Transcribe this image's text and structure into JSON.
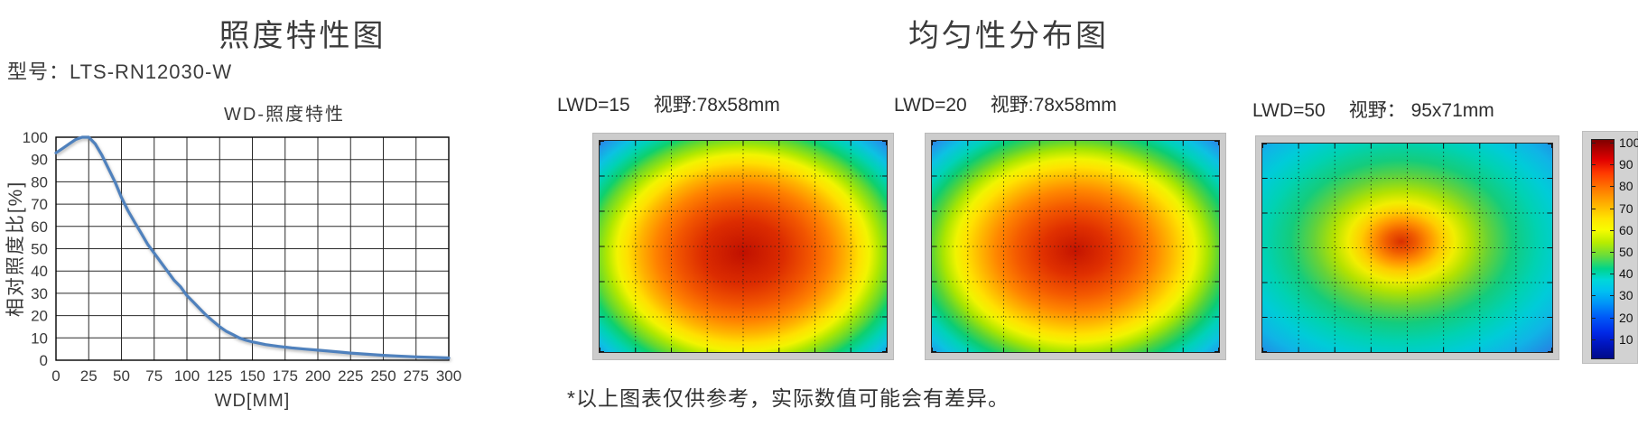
{
  "left_panel": {
    "title": "照度特性图",
    "model_label": "型号：LTS-RN12030-W"
  },
  "right_panel": {
    "title": "均匀性分布图",
    "heatmaps": [
      {
        "lwd_label": "LWD=15",
        "fov_label": "视野:78x58mm"
      },
      {
        "lwd_label": "LWD=20",
        "fov_label": "视野:78x58mm"
      },
      {
        "lwd_label": "LWD=50",
        "fov_label": "视野： 95x71mm"
      }
    ],
    "colorbar": {
      "ticks": [
        "100",
        "90",
        "80",
        "70",
        "60",
        "50",
        "40",
        "30",
        "20",
        "10"
      ],
      "gradient": [
        [
          "#7f0000",
          0
        ],
        [
          "#a00000",
          3
        ],
        [
          "#e00000",
          9
        ],
        [
          "#ff3800",
          15
        ],
        [
          "#ff7600",
          22
        ],
        [
          "#ffae00",
          29
        ],
        [
          "#ffe400",
          36
        ],
        [
          "#f8fc00",
          41
        ],
        [
          "#b8ec00",
          47
        ],
        [
          "#68dc3c",
          53
        ],
        [
          "#00d48c",
          59
        ],
        [
          "#00d8d8",
          64
        ],
        [
          "#00c2f0",
          69
        ],
        [
          "#0092f8",
          75
        ],
        [
          "#005af8",
          81
        ],
        [
          "#002ae8",
          88
        ],
        [
          "#0016c2",
          93
        ],
        [
          "#000a88",
          100
        ]
      ]
    }
  },
  "footer_note": "*以上图表仅供参考，实际数值可能会有差异。",
  "colors": {
    "curve": "#4f81bd",
    "grid": "#2a2a2a",
    "text": "#3a3a3a"
  },
  "chart_data": [
    {
      "type": "line",
      "title": "WD-照度特性",
      "xlabel": "WD[MM]",
      "ylabel": "相对照度比[%]",
      "xlim": [
        0,
        300
      ],
      "ylim": [
        0,
        100
      ],
      "xticks": [
        0,
        25,
        50,
        75,
        100,
        125,
        150,
        175,
        200,
        225,
        250,
        275,
        300
      ],
      "yticks": [
        0,
        10,
        20,
        30,
        40,
        50,
        60,
        70,
        80,
        90,
        100
      ],
      "grid": true,
      "legend": false,
      "series": [
        {
          "name": "相对照度比",
          "color": "#4f81bd",
          "x": [
            0,
            5,
            10,
            15,
            20,
            25,
            30,
            35,
            40,
            45,
            50,
            55,
            60,
            65,
            70,
            75,
            80,
            85,
            90,
            95,
            100,
            105,
            110,
            115,
            120,
            125,
            130,
            135,
            140,
            145,
            150,
            160,
            170,
            180,
            190,
            200,
            210,
            225,
            240,
            250,
            260,
            275,
            290,
            300
          ],
          "y": [
            93,
            95,
            97,
            99,
            100,
            100,
            97,
            92,
            86,
            80,
            73,
            67,
            62,
            57,
            52,
            48,
            44,
            40,
            36,
            33,
            29,
            26,
            23,
            20,
            17.5,
            15,
            13,
            11.5,
            10,
            9,
            8.2,
            7,
            6.2,
            5.5,
            5,
            4.5,
            4,
            3.2,
            2.6,
            2.2,
            1.9,
            1.5,
            1.2,
            1
          ]
        }
      ]
    },
    {
      "type": "heatmap",
      "title": "LWD=15 视野:78x58mm",
      "colormap": "jet",
      "zlim": [
        0,
        100
      ],
      "grid_cols": 8,
      "grid_rows": 6,
      "center_pct": [
        50,
        53
      ],
      "stops": [
        [
          "#c01000",
          0
        ],
        [
          "#dc2c00",
          20
        ],
        [
          "#f25600",
          33
        ],
        [
          "#ff8200",
          43
        ],
        [
          "#ffb400",
          51
        ],
        [
          "#ffe000",
          57
        ],
        [
          "#f2f400",
          62
        ],
        [
          "#b0e800",
          67
        ],
        [
          "#62d830",
          73
        ],
        [
          "#0ed06e",
          78
        ],
        [
          "#00d2b4",
          84
        ],
        [
          "#0cc2e2",
          90
        ],
        [
          "#1f9ce8",
          96
        ],
        [
          "#2b7fe0",
          100
        ]
      ]
    },
    {
      "type": "heatmap",
      "title": "LWD=20 视野:78x58mm",
      "colormap": "jet",
      "zlim": [
        0,
        100
      ],
      "grid_cols": 8,
      "grid_rows": 6,
      "center_pct": [
        50,
        52
      ],
      "stops": [
        [
          "#c41400",
          0
        ],
        [
          "#e03000",
          16
        ],
        [
          "#f45a00",
          29
        ],
        [
          "#ff8600",
          39
        ],
        [
          "#ffb600",
          47
        ],
        [
          "#ffe200",
          54
        ],
        [
          "#f0f400",
          59
        ],
        [
          "#aae600",
          65
        ],
        [
          "#58d436",
          71
        ],
        [
          "#0ccc74",
          77
        ],
        [
          "#00d2b8",
          83
        ],
        [
          "#0cc2e2",
          90
        ],
        [
          "#1f9ce8",
          96
        ],
        [
          "#2b7fe0",
          100
        ]
      ]
    },
    {
      "type": "heatmap",
      "title": "LWD=50 视野： 95x71mm",
      "colormap": "jet",
      "zlim": [
        0,
        100
      ],
      "grid_cols": 8,
      "grid_rows": 6,
      "center_pct": [
        48,
        47
      ],
      "stops": [
        [
          "#d83000",
          0
        ],
        [
          "#f05c00",
          7
        ],
        [
          "#ff9200",
          13
        ],
        [
          "#ffcc00",
          19
        ],
        [
          "#f2ee00",
          25
        ],
        [
          "#b4e200",
          32
        ],
        [
          "#66d238",
          41
        ],
        [
          "#14cc7c",
          52
        ],
        [
          "#00d2b2",
          64
        ],
        [
          "#00ccd8",
          75
        ],
        [
          "#10b4e6",
          86
        ],
        [
          "#1e92e4",
          95
        ],
        [
          "#2b7fe0",
          100
        ]
      ]
    }
  ]
}
